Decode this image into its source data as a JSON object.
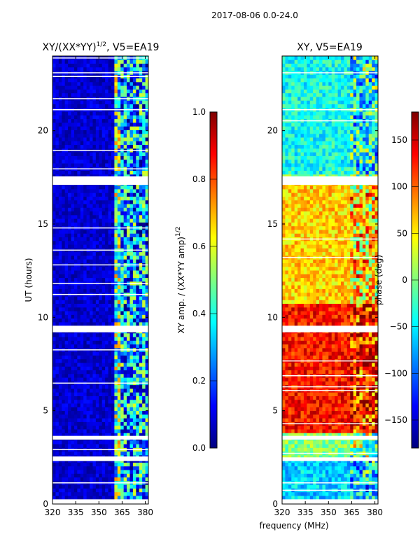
{
  "suptitle": "2017-08-06 0.0-24.0",
  "colors": {
    "background": "#ffffff",
    "axis": "#000000",
    "gap": "#ffffff",
    "jet": [
      "#00007f",
      "#0000ff",
      "#007fff",
      "#00ffff",
      "#7fff7f",
      "#ffff00",
      "#ff7f00",
      "#ff0000",
      "#7f0000"
    ]
  },
  "chart_data": [
    {
      "type": "heatmap",
      "title_main": "XY/(XX*YY)",
      "title_sup": "1/2",
      "title_rest": ", V5=EA19",
      "xlabel": "",
      "ylabel": "UT (hours)",
      "xlim": [
        320,
        382
      ],
      "ylim": [
        0,
        24
      ],
      "xticks": [
        320,
        335,
        350,
        365,
        380
      ],
      "xtick_labels": [
        "320",
        "335",
        "350",
        "365",
        "380"
      ],
      "yticks": [
        0,
        5,
        10,
        15,
        20
      ],
      "ytick_labels": [
        "0",
        "5",
        "10",
        "15",
        "20"
      ],
      "data_extent_hours": [
        0.25,
        24.0
      ],
      "gaps_hours": [
        [
          17.1,
          17.55
        ],
        [
          9.2,
          9.55
        ],
        [
          3.45,
          3.65
        ],
        [
          2.3,
          2.5
        ]
      ],
      "colorbar": {
        "label_main": "XY amp. / (XX*YY amp)",
        "label_sup": "1/2",
        "range": [
          0.0,
          1.0
        ],
        "ticks": [
          0.0,
          0.2,
          0.4,
          0.6,
          0.8,
          1.0
        ],
        "tick_labels": [
          "0.0",
          "0.2",
          "0.4",
          "0.6",
          "0.8",
          "1.0"
        ]
      },
      "pattern_bands_mhz": [
        {
          "range": [
            320,
            359
          ],
          "level": 0.08
        },
        {
          "range": [
            359,
            363
          ],
          "level": 0.45
        },
        {
          "range": [
            363,
            382
          ],
          "level": 0.3
        }
      ]
    },
    {
      "type": "heatmap",
      "title": "XY, V5=EA19",
      "xlabel": "frequency (MHz)",
      "ylabel": "",
      "xlim": [
        320,
        382
      ],
      "ylim": [
        0,
        24
      ],
      "xticks": [
        320,
        335,
        350,
        365,
        380
      ],
      "xtick_labels": [
        "320",
        "335",
        "350",
        "365",
        "380"
      ],
      "yticks": [
        0,
        5,
        10,
        15,
        20
      ],
      "ytick_labels": [
        "0",
        "5",
        "10",
        "15",
        "20"
      ],
      "data_extent_hours": [
        0.25,
        24.0
      ],
      "gaps_hours": [
        [
          2.3,
          2.5
        ],
        [
          9.2,
          9.55
        ],
        [
          17.1,
          17.55
        ],
        [
          3.45,
          3.65
        ]
      ],
      "colorbar": {
        "label": "phase (deg)",
        "range": [
          -180,
          180
        ],
        "ticks": [
          -150,
          -100,
          -50,
          0,
          50,
          100,
          150
        ],
        "tick_labels": [
          "−150",
          "−100",
          "−50",
          "0",
          "50",
          "100",
          "150"
        ]
      },
      "pattern_segments_hours": [
        {
          "range": [
            3.65,
            10.6
          ],
          "phase_deg": 130
        },
        {
          "range": [
            10.6,
            17.1
          ],
          "phase_deg": 60
        },
        {
          "range": [
            17.55,
            24.0
          ],
          "phase_deg": -40
        },
        {
          "range": [
            0.25,
            2.3
          ],
          "phase_deg": -60
        }
      ]
    }
  ]
}
